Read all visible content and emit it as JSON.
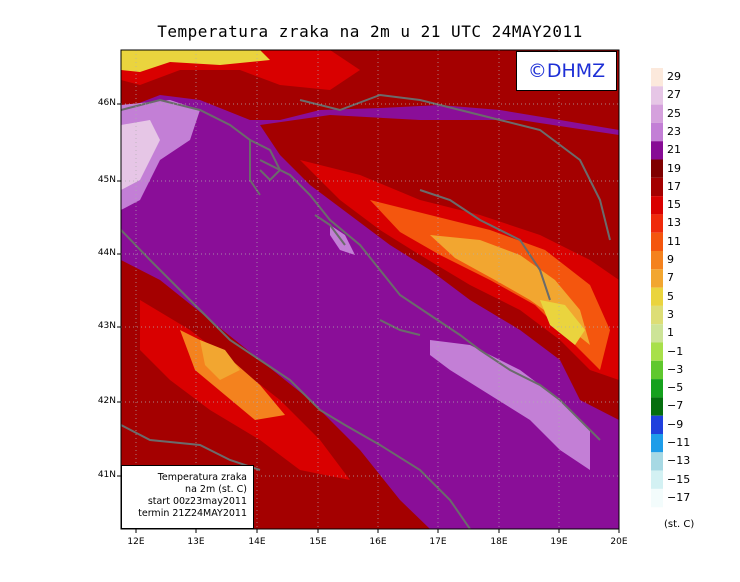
{
  "title": "Temperatura zraka na 2m u 21 UTC 24MAY2011",
  "logo": "©DHMZ",
  "info_box": {
    "line1": "Temperatura zraka",
    "line2": "na 2m (st. C)",
    "line3": "start 00z23may2011",
    "line4": "termin 21Z24MAY2011"
  },
  "lat_labels": [
    "46N",
    "45N",
    "44N",
    "43N",
    "42N",
    "41N"
  ],
  "lon_labels": [
    "12E",
    "13E",
    "14E",
    "15E",
    "16E",
    "17E",
    "18E",
    "19E",
    "20E"
  ],
  "colorbar": {
    "labels": [
      "29",
      "27",
      "25",
      "23",
      "21",
      "19",
      "17",
      "15",
      "13",
      "11",
      "9",
      "7",
      "5",
      "3",
      "1",
      "−1",
      "−3",
      "−5",
      "−7",
      "−9",
      "−11",
      "−13",
      "−15",
      "−17"
    ],
    "colors": [
      "#fce9dc",
      "#e6c6e6",
      "#d5a1dd",
      "#c37fd6",
      "#870b95",
      "#7f0000",
      "#a40000",
      "#d90000",
      "#ef2a0b",
      "#f4560e",
      "#f4821e",
      "#f2a630",
      "#ead43e",
      "#ddde76",
      "#cde497",
      "#a8e04a",
      "#5fc82e",
      "#15a11d",
      "#056e0e",
      "#1f40dd",
      "#1e9de9",
      "#a7d9e4",
      "#d3f1f3",
      "#f3fcfc"
    ],
    "units": "(st. C)"
  },
  "map": {
    "background_color": "#8a0e98",
    "land_colors": [
      "#7f0000",
      "#a40000",
      "#d90000",
      "#ef2a0b",
      "#f4560e",
      "#f4821e",
      "#f2a630",
      "#ead43e",
      "#ddde76"
    ],
    "coastline_color": "#6b6b6b"
  }
}
